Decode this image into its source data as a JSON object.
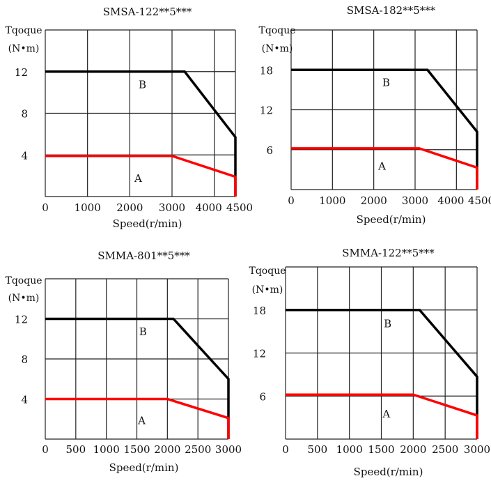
{
  "chart_data": [
    {
      "type": "line",
      "title": "SMSA-122**5***",
      "ylabel_line1": "Tqoque",
      "ylabel_line2": "(N•m)",
      "xlabel": "Speed(r/min)",
      "xlim": [
        0,
        4500
      ],
      "ylim": [
        0,
        16
      ],
      "xticks": [
        0,
        1000,
        2000,
        3000,
        4000,
        4500
      ],
      "yticks": [
        4,
        8,
        12
      ],
      "grid_x": [
        0,
        1000,
        2000,
        3000,
        4000,
        4500
      ],
      "grid_y": [
        0,
        4,
        8,
        12,
        16
      ],
      "grid": true,
      "series": [
        {
          "name": "B",
          "color": "#000000",
          "x": [
            0,
            3300,
            4500,
            4500
          ],
          "y": [
            12,
            12,
            5.7,
            0
          ]
        },
        {
          "name": "A",
          "color": "#ff0000",
          "x": [
            0,
            3000,
            4500,
            4500
          ],
          "y": [
            3.9,
            3.9,
            1.9,
            0
          ]
        }
      ],
      "annotations": [
        {
          "text": "B",
          "x": 2300,
          "y": 10.8
        },
        {
          "text": "A",
          "x": 2200,
          "y": 1.8
        }
      ]
    },
    {
      "type": "line",
      "title": "SMSA-182**5***",
      "ylabel_line1": "Tqoque",
      "ylabel_line2": "(N•m)",
      "xlabel": "Speed(r/min)",
      "xlim": [
        0,
        4500
      ],
      "ylim": [
        0,
        24
      ],
      "xticks": [
        0,
        1000,
        2000,
        3000,
        4000,
        4500
      ],
      "yticks": [
        6,
        12,
        18
      ],
      "grid_x": [
        0,
        1000,
        2000,
        3000,
        4000,
        4500
      ],
      "grid_y": [
        0,
        6,
        12,
        18,
        24
      ],
      "grid": true,
      "series": [
        {
          "name": "B",
          "color": "#000000",
          "x": [
            0,
            3300,
            4500,
            4500
          ],
          "y": [
            18,
            18,
            8.7,
            0
          ]
        },
        {
          "name": "A",
          "color": "#ff0000",
          "x": [
            0,
            3100,
            4500,
            4500
          ],
          "y": [
            6.2,
            6.2,
            3.3,
            0
          ]
        }
      ],
      "annotations": [
        {
          "text": "B",
          "x": 2300,
          "y": 16.2
        },
        {
          "text": "A",
          "x": 2200,
          "y": 3.6
        }
      ]
    },
    {
      "type": "line",
      "title": "SMMA-801**5***",
      "ylabel_line1": "Tqoque",
      "ylabel_line2": "(N•m)",
      "xlabel": "Speed(r/min)",
      "xlim": [
        0,
        3000
      ],
      "ylim": [
        0,
        16
      ],
      "xticks": [
        0,
        500,
        1000,
        1500,
        2000,
        2500,
        3000
      ],
      "yticks": [
        4,
        8,
        12
      ],
      "grid_x": [
        0,
        500,
        1000,
        1500,
        2000,
        2500,
        3000
      ],
      "grid_y": [
        0,
        4,
        8,
        12,
        16
      ],
      "grid": true,
      "series": [
        {
          "name": "B",
          "color": "#000000",
          "x": [
            0,
            2100,
            3000,
            3000
          ],
          "y": [
            12,
            12,
            6.0,
            0
          ]
        },
        {
          "name": "A",
          "color": "#ff0000",
          "x": [
            0,
            2000,
            3000,
            3000
          ],
          "y": [
            4.0,
            4.0,
            2.1,
            0
          ]
        }
      ],
      "annotations": [
        {
          "text": "B",
          "x": 1600,
          "y": 10.8
        },
        {
          "text": "A",
          "x": 1580,
          "y": 1.9
        }
      ]
    },
    {
      "type": "line",
      "title": "SMMA-122**5***",
      "ylabel_line1": "Tqoque",
      "ylabel_line2": "(N•m)",
      "xlabel": "Speed(r/min)",
      "xlim": [
        0,
        3000
      ],
      "ylim": [
        0,
        24
      ],
      "xticks": [
        0,
        500,
        1000,
        1500,
        2000,
        2500,
        3000
      ],
      "yticks": [
        6,
        12,
        18
      ],
      "grid_x": [
        0,
        500,
        1000,
        1500,
        2000,
        2500,
        3000
      ],
      "grid_y": [
        0,
        6,
        12,
        18,
        24
      ],
      "grid": true,
      "series": [
        {
          "name": "B",
          "color": "#000000",
          "x": [
            0,
            2100,
            3000,
            3000
          ],
          "y": [
            18,
            18,
            8.7,
            0
          ]
        },
        {
          "name": "A",
          "color": "#ff0000",
          "x": [
            0,
            2000,
            3000,
            3000
          ],
          "y": [
            6.2,
            6.2,
            3.3,
            0
          ]
        }
      ],
      "annotations": [
        {
          "text": "B",
          "x": 1600,
          "y": 16.2
        },
        {
          "text": "A",
          "x": 1580,
          "y": 3.6
        }
      ]
    }
  ]
}
